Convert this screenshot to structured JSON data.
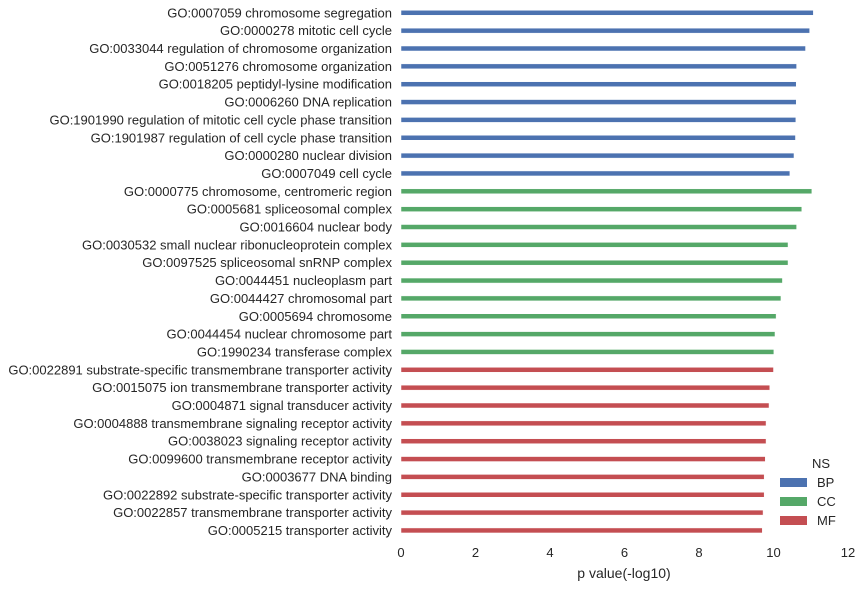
{
  "chart_data": {
    "type": "bar",
    "orientation": "horizontal",
    "xlabel": "p value(-log10)",
    "ylabel": "",
    "xlim": [
      0,
      12
    ],
    "xticks": [
      "0",
      "2",
      "4",
      "6",
      "8",
      "10",
      "12"
    ],
    "grid": false,
    "legend": {
      "title": "NS",
      "placement": "lower-right",
      "entries": [
        {
          "name": "BP",
          "color": "#4c72b0"
        },
        {
          "name": "CC",
          "color": "#55a868"
        },
        {
          "name": "MF",
          "color": "#c44e52"
        }
      ]
    },
    "categories": [
      "GO:0007059 chromosome segregation",
      "GO:0000278 mitotic cell cycle",
      "GO:0033044 regulation of chromosome organization",
      "GO:0051276 chromosome organization",
      "GO:0018205 peptidyl-lysine modification",
      "GO:0006260 DNA replication",
      "GO:1901990 regulation of mitotic cell cycle phase transition",
      "GO:1901987 regulation of cell cycle phase transition",
      "GO:0000280 nuclear division",
      "GO:0007049 cell cycle",
      "GO:0000775 chromosome, centromeric region",
      "GO:0005681 spliceosomal complex",
      "GO:0016604 nuclear body",
      "GO:0030532 small nuclear ribonucleoprotein complex",
      "GO:0097525 spliceosomal snRNP complex",
      "GO:0044451 nucleoplasm part",
      "GO:0044427 chromosomal part",
      "GO:0005694 chromosome",
      "GO:0044454 nuclear chromosome part",
      "GO:1990234 transferase complex",
      "GO:0022891 substrate-specific transmembrane transporter activity",
      "GO:0015075 ion transmembrane transporter activity",
      "GO:0004871 signal transducer activity",
      "GO:0004888 transmembrane signaling receptor activity",
      "GO:0038023 signaling receptor activity",
      "GO:0099600 transmembrane receptor activity",
      "GO:0003677 DNA binding",
      "GO:0022892 substrate-specific transporter activity",
      "GO:0022857 transmembrane transporter activity",
      "GO:0005215 transporter activity"
    ],
    "groups": [
      "BP",
      "BP",
      "BP",
      "BP",
      "BP",
      "BP",
      "BP",
      "BP",
      "BP",
      "BP",
      "CC",
      "CC",
      "CC",
      "CC",
      "CC",
      "CC",
      "CC",
      "CC",
      "CC",
      "CC",
      "MF",
      "MF",
      "MF",
      "MF",
      "MF",
      "MF",
      "MF",
      "MF",
      "MF",
      "MF"
    ],
    "values": [
      11.07,
      10.97,
      10.86,
      10.62,
      10.61,
      10.61,
      10.6,
      10.59,
      10.55,
      10.44,
      11.03,
      10.76,
      10.62,
      10.39,
      10.39,
      10.24,
      10.2,
      10.07,
      10.04,
      10.01,
      10.0,
      9.9,
      9.88,
      9.8,
      9.8,
      9.78,
      9.75,
      9.75,
      9.72,
      9.7
    ]
  }
}
